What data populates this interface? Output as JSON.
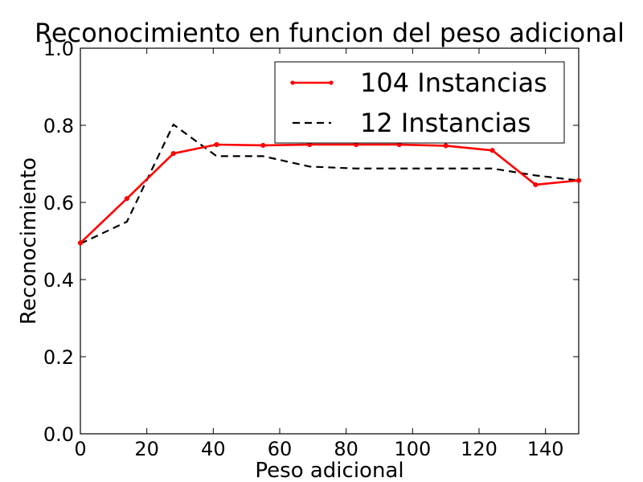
{
  "chart_data": {
    "type": "line",
    "title": "Reconocimiento en funcion del peso adicional",
    "xlabel": "Peso adicional",
    "ylabel": "Reconocimiento",
    "xlim": [
      0,
      150
    ],
    "ylim": [
      0.0,
      1.0
    ],
    "xticks": [
      0,
      20,
      40,
      60,
      80,
      100,
      120,
      140
    ],
    "yticks": [
      0.0,
      0.2,
      0.4,
      0.6,
      0.8,
      1.0
    ],
    "xtick_labels": [
      "0",
      "20",
      "40",
      "60",
      "80",
      "100",
      "120",
      "140"
    ],
    "ytick_labels": [
      "0.0",
      "0.2",
      "0.4",
      "0.6",
      "0.8",
      "1.0"
    ],
    "grid": false,
    "legend_position": "top-right",
    "series": [
      {
        "name": "104 Instancias",
        "color": "#ff0000",
        "style": "solid-markers",
        "x": [
          0,
          14,
          28,
          41,
          55,
          69,
          83,
          96,
          110,
          124,
          137,
          150
        ],
        "y": [
          0.495,
          0.61,
          0.727,
          0.75,
          0.748,
          0.75,
          0.75,
          0.75,
          0.747,
          0.735,
          0.646,
          0.657
        ]
      },
      {
        "name": "12 Instancias",
        "color": "#000000",
        "style": "dashed",
        "x": [
          0,
          14,
          28,
          41,
          55,
          69,
          83,
          96,
          110,
          124,
          137,
          150
        ],
        "y": [
          0.493,
          0.55,
          0.802,
          0.72,
          0.72,
          0.693,
          0.688,
          0.688,
          0.688,
          0.688,
          0.67,
          0.657
        ]
      }
    ]
  }
}
